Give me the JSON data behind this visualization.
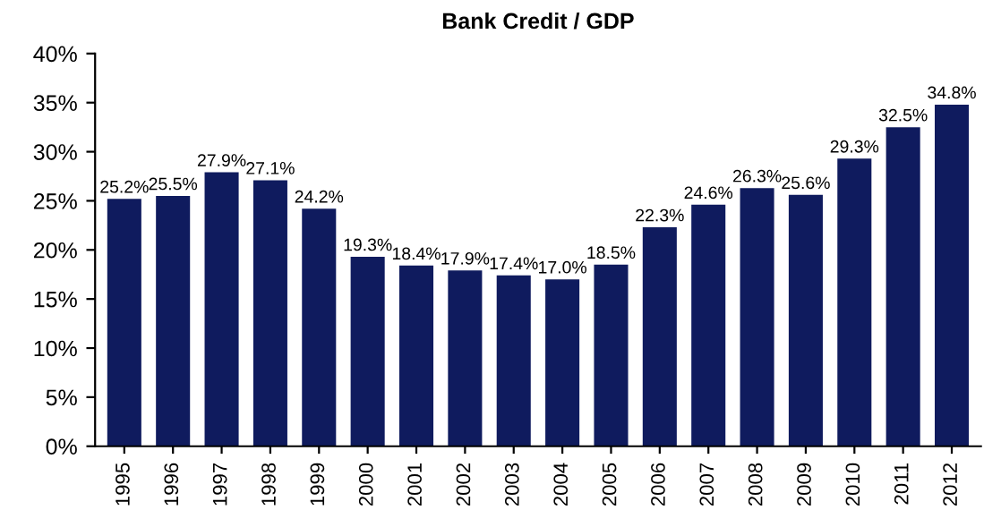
{
  "chart_data": {
    "type": "bar",
    "title": "Bank Credit / GDP",
    "categories": [
      "1995",
      "1996",
      "1997",
      "1998",
      "1999",
      "2000",
      "2001",
      "2002",
      "2003",
      "2004",
      "2005",
      "2006",
      "2007",
      "2008",
      "2009",
      "2010",
      "2011",
      "2012"
    ],
    "values": [
      25.2,
      25.5,
      27.9,
      27.1,
      24.2,
      19.3,
      18.4,
      17.9,
      17.4,
      17.0,
      18.5,
      22.3,
      24.6,
      26.3,
      25.6,
      29.3,
      32.5,
      34.8
    ],
    "value_labels": [
      "25.2%",
      "25.5%",
      "27.9%",
      "27.1%",
      "24.2%",
      "19.3%",
      "18.4%",
      "17.9%",
      "17.4%",
      "17.0%",
      "18.5%",
      "22.3%",
      "24.6%",
      "26.3%",
      "25.6%",
      "29.3%",
      "32.5%",
      "34.8%"
    ],
    "color": "#0f1b5e",
    "ylim": [
      0,
      40
    ],
    "yticks": [
      {
        "value": 0,
        "label": "0%"
      },
      {
        "value": 5,
        "label": "5%"
      },
      {
        "value": 10,
        "label": "10%"
      },
      {
        "value": 15,
        "label": "15%"
      },
      {
        "value": 20,
        "label": "20%"
      },
      {
        "value": 25,
        "label": "25%"
      },
      {
        "value": 30,
        "label": "30%"
      },
      {
        "value": 35,
        "label": "35%"
      },
      {
        "value": 40,
        "label": "40%"
      }
    ],
    "grid": false,
    "legend": false
  }
}
